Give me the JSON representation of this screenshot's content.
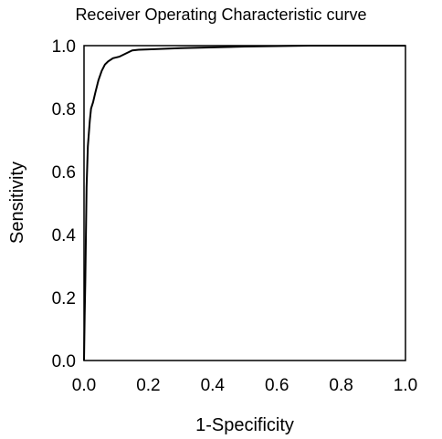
{
  "chart_data": {
    "type": "line",
    "title": "Receiver Operating Characteristic curve",
    "xlabel": "1-Specificity",
    "ylabel": "Sensitivity",
    "xlim": [
      0,
      1
    ],
    "ylim": [
      0,
      1
    ],
    "x_ticks": [
      "0.0",
      "0.2",
      "0.4",
      "0.6",
      "0.8",
      "1.0"
    ],
    "y_ticks": [
      "0.0",
      "0.2",
      "0.4",
      "0.6",
      "0.8",
      "1.0"
    ],
    "grid": false,
    "legend": "none",
    "series": [
      {
        "color": "#000000",
        "x": [
          0.0,
          0.002,
          0.004,
          0.006,
          0.008,
          0.012,
          0.018,
          0.022,
          0.028,
          0.035,
          0.045,
          0.055,
          0.065,
          0.075,
          0.09,
          0.11,
          0.13,
          0.15,
          0.17,
          0.2,
          0.3,
          0.5,
          0.7,
          1.0
        ],
        "y": [
          0.0,
          0.14,
          0.25,
          0.4,
          0.55,
          0.68,
          0.76,
          0.8,
          0.82,
          0.85,
          0.89,
          0.92,
          0.94,
          0.95,
          0.96,
          0.965,
          0.975,
          0.985,
          0.987,
          0.988,
          0.992,
          0.997,
          1.0,
          1.0
        ]
      }
    ]
  }
}
